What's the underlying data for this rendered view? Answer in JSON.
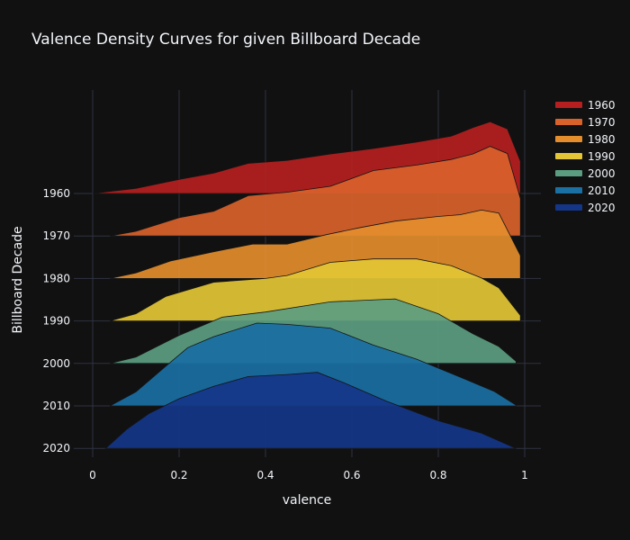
{
  "chart_data": {
    "type": "area",
    "title": "Valence Density Curves for given Billboard Decade",
    "xlabel": "valence",
    "ylabel": "Billboard Decade",
    "xlim": [
      -0.04,
      1.04
    ],
    "x_ticks": [
      "0",
      "0.2",
      "0.4",
      "0.6",
      "0.8",
      "1"
    ],
    "x_tick_values": [
      0,
      0.2,
      0.4,
      0.6,
      0.8,
      1
    ],
    "categories": [
      "1960",
      "1970",
      "1980",
      "1990",
      "2000",
      "2010",
      "2020"
    ],
    "grid": true,
    "legend_position": "top-right",
    "series": [
      {
        "name": "1960",
        "color": "#b51f1f",
        "x": [
          0.0,
          0.1,
          0.2,
          0.28,
          0.36,
          0.45,
          0.55,
          0.65,
          0.75,
          0.83,
          0.88,
          0.92,
          0.96,
          0.99
        ],
        "y": [
          0.0,
          0.12,
          0.33,
          0.48,
          0.71,
          0.78,
          0.93,
          1.06,
          1.21,
          1.35,
          1.55,
          1.69,
          1.52,
          0.76
        ]
      },
      {
        "name": "1970",
        "color": "#d9622b",
        "x": [
          0.04,
          0.1,
          0.2,
          0.28,
          0.36,
          0.45,
          0.55,
          0.65,
          0.75,
          0.83,
          0.88,
          0.92,
          0.96,
          0.99
        ],
        "y": [
          0.0,
          0.11,
          0.43,
          0.58,
          0.95,
          1.03,
          1.17,
          1.54,
          1.67,
          1.8,
          1.93,
          2.11,
          1.94,
          0.88
        ]
      },
      {
        "name": "1980",
        "color": "#e38d2c",
        "x": [
          0.04,
          0.1,
          0.18,
          0.28,
          0.37,
          0.45,
          0.54,
          0.62,
          0.7,
          0.8,
          0.85,
          0.9,
          0.94,
          0.99
        ],
        "y": [
          0.0,
          0.13,
          0.41,
          0.63,
          0.81,
          0.81,
          1.03,
          1.2,
          1.35,
          1.46,
          1.5,
          1.61,
          1.54,
          0.54
        ]
      },
      {
        "name": "1990",
        "color": "#e3c535",
        "x": [
          0.04,
          0.1,
          0.17,
          0.28,
          0.4,
          0.45,
          0.55,
          0.65,
          0.75,
          0.83,
          0.9,
          0.94,
          0.99
        ],
        "y": [
          0.0,
          0.17,
          0.58,
          0.91,
          1.0,
          1.07,
          1.38,
          1.46,
          1.46,
          1.3,
          1.01,
          0.78,
          0.13
        ]
      },
      {
        "name": "2000",
        "color": "#5b9d80",
        "x": [
          0.04,
          0.1,
          0.2,
          0.3,
          0.4,
          0.55,
          0.7,
          0.8,
          0.88,
          0.94,
          0.98
        ],
        "y": [
          0.0,
          0.15,
          0.66,
          1.09,
          1.21,
          1.45,
          1.52,
          1.17,
          0.7,
          0.4,
          0.05
        ]
      },
      {
        "name": "2010",
        "color": "#1a6fa3",
        "x": [
          0.04,
          0.1,
          0.17,
          0.22,
          0.28,
          0.38,
          0.45,
          0.55,
          0.65,
          0.75,
          0.85,
          0.93,
          0.98
        ],
        "y": [
          0.0,
          0.33,
          0.94,
          1.37,
          1.63,
          1.95,
          1.92,
          1.83,
          1.43,
          1.1,
          0.68,
          0.34,
          0.02
        ]
      },
      {
        "name": "2020",
        "color": "#143688",
        "x": [
          0.03,
          0.08,
          0.13,
          0.2,
          0.28,
          0.36,
          0.45,
          0.52,
          0.58,
          0.68,
          0.8,
          0.9,
          0.98
        ],
        "y": [
          0.0,
          0.46,
          0.82,
          1.17,
          1.46,
          1.69,
          1.74,
          1.79,
          1.55,
          1.11,
          0.65,
          0.36,
          0.0
        ]
      }
    ]
  }
}
